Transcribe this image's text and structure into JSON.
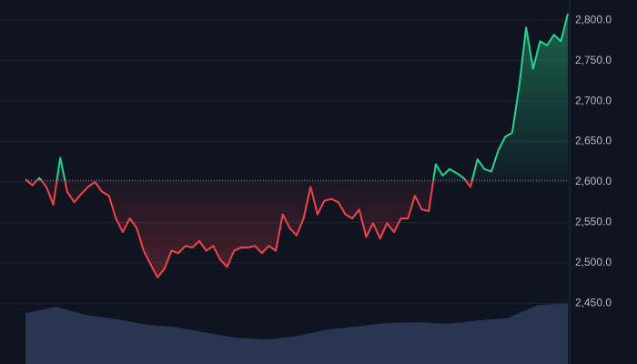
{
  "chart_data": {
    "type": "baseline-line",
    "values": [
      2603,
      2596,
      2605,
      2594,
      2572,
      2630,
      2588,
      2575,
      2585,
      2594,
      2600,
      2588,
      2583,
      2555,
      2538,
      2555,
      2543,
      2515,
      2498,
      2482,
      2493,
      2515,
      2512,
      2521,
      2519,
      2527,
      2515,
      2521,
      2504,
      2495,
      2515,
      2519,
      2519,
      2521,
      2512,
      2521,
      2515,
      2560,
      2543,
      2534,
      2555,
      2594,
      2560,
      2577,
      2579,
      2575,
      2560,
      2555,
      2566,
      2532,
      2549,
      2530,
      2549,
      2538,
      2555,
      2555,
      2583,
      2566,
      2564,
      2622,
      2608,
      2616,
      2611,
      2605,
      2594,
      2628,
      2616,
      2613,
      2639,
      2656,
      2661,
      2718,
      2791,
      2740,
      2774,
      2769,
      2782,
      2774,
      2808
    ],
    "baseline": 2602,
    "up_color": "#2bd08c",
    "down_color": "#f0444a",
    "ylim": [
      2375,
      2825
    ],
    "yticks": [
      {
        "value": 2450,
        "label": "2,450.0"
      },
      {
        "value": 2500,
        "label": "2,500.0"
      },
      {
        "value": 2550,
        "label": "2,550.0"
      },
      {
        "value": 2600,
        "label": "2,600.0"
      },
      {
        "value": 2650,
        "label": "2,650.0"
      },
      {
        "value": 2700,
        "label": "2,700.0"
      },
      {
        "value": 2750,
        "label": "2,750.0"
      },
      {
        "value": 2800,
        "label": "2,800.0"
      }
    ],
    "grid": true,
    "volume": {
      "values": [
        62,
        70,
        60,
        55,
        48,
        45,
        38,
        32,
        30,
        34,
        42,
        46,
        50,
        51,
        49,
        53,
        56,
        72,
        74
      ],
      "ylim": [
        0,
        100
      ],
      "color": "#2f3a5c"
    }
  }
}
